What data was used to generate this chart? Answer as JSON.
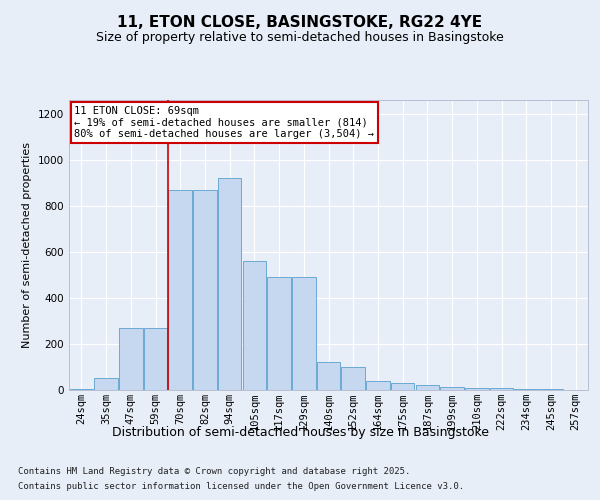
{
  "title1": "11, ETON CLOSE, BASINGSTOKE, RG22 4YE",
  "title2": "Size of property relative to semi-detached houses in Basingstoke",
  "xlabel": "Distribution of semi-detached houses by size in Basingstoke",
  "ylabel": "Number of semi-detached properties",
  "categories": [
    "24sqm",
    "35sqm",
    "47sqm",
    "59sqm",
    "70sqm",
    "82sqm",
    "94sqm",
    "105sqm",
    "117sqm",
    "129sqm",
    "140sqm",
    "152sqm",
    "164sqm",
    "175sqm",
    "187sqm",
    "199sqm",
    "210sqm",
    "222sqm",
    "234sqm",
    "245sqm",
    "257sqm"
  ],
  "values": [
    5,
    50,
    270,
    270,
    870,
    870,
    920,
    560,
    490,
    490,
    120,
    100,
    40,
    30,
    20,
    15,
    10,
    8,
    5,
    3,
    2
  ],
  "bar_color": "#c5d8f0",
  "bar_edge_color": "#6aaad4",
  "vline_index": 4,
  "vline_color": "#cc0000",
  "annotation_text": "11 ETON CLOSE: 69sqm\n← 19% of semi-detached houses are smaller (814)\n80% of semi-detached houses are larger (3,504) →",
  "annotation_box_edgecolor": "#cc0000",
  "ylim": [
    0,
    1260
  ],
  "yticks": [
    0,
    200,
    400,
    600,
    800,
    1000,
    1200
  ],
  "footnote1": "Contains HM Land Registry data © Crown copyright and database right 2025.",
  "footnote2": "Contains public sector information licensed under the Open Government Licence v3.0.",
  "bg_color": "#e8eef8",
  "plot_bg_color": "#e8eef8",
  "title1_fontsize": 11,
  "title2_fontsize": 9,
  "xlabel_fontsize": 9,
  "ylabel_fontsize": 8,
  "tick_fontsize": 7.5,
  "annotation_fontsize": 7.5,
  "footnote_fontsize": 6.5
}
